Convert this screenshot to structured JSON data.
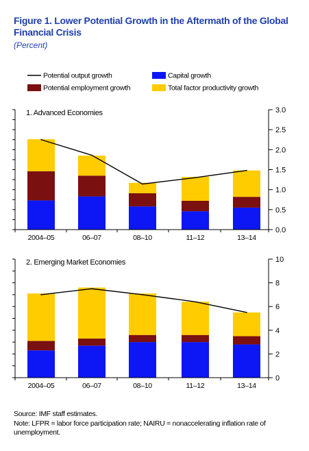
{
  "figure_title": "Figure 1. Lower Potential Growth in the Aftermath of the Global Financial Crisis",
  "subtitle": "(Percent)",
  "legend": {
    "line": "Potential output growth",
    "capital": "Capital growth",
    "employment": "Potential employment growth",
    "tfp": "Total factor productivity growth"
  },
  "colors": {
    "capital": "#0d16f5",
    "employment": "#7a1010",
    "tfp": "#ffcc00",
    "line": "#000000"
  },
  "source": "Source: IMF staff estimates.",
  "note": "Note: LFPR = labor force participation rate; NAIRU = nonaccelerating inflation rate of unemployment.",
  "chart_data": [
    {
      "type": "bar",
      "stacked": true,
      "title": "1. Advanced Economies",
      "categories": [
        "2004–05",
        "06–07",
        "08–10",
        "11–12",
        "13–14"
      ],
      "series": [
        {
          "name": "Capital growth",
          "values": [
            0.73,
            0.83,
            0.58,
            0.46,
            0.55
          ]
        },
        {
          "name": "Potential employment growth",
          "values": [
            0.73,
            0.52,
            0.33,
            0.26,
            0.27
          ]
        },
        {
          "name": "Total factor productivity growth",
          "values": [
            0.8,
            0.5,
            0.26,
            0.6,
            0.66
          ]
        }
      ],
      "line": {
        "name": "Potential output growth",
        "values": [
          2.25,
          1.86,
          1.14,
          1.3,
          1.48
        ]
      },
      "ylim": [
        0,
        3.0
      ],
      "yticks": [
        "0.0",
        "0.5",
        "1.0",
        "1.5",
        "2.0",
        "2.5",
        "3.0"
      ],
      "y_axis_side": "right"
    },
    {
      "type": "bar",
      "stacked": true,
      "title": "2. Emerging Market Economies",
      "categories": [
        "2004–05",
        "06–07",
        "08–10",
        "11–12",
        "13–14"
      ],
      "series": [
        {
          "name": "Capital growth",
          "values": [
            2.3,
            2.7,
            3.0,
            3.0,
            2.8
          ]
        },
        {
          "name": "Potential employment growth",
          "values": [
            0.8,
            0.6,
            0.6,
            0.6,
            0.7
          ]
        },
        {
          "name": "Total factor productivity growth",
          "values": [
            4.0,
            4.3,
            3.5,
            2.8,
            2.0
          ]
        }
      ],
      "line": {
        "name": "Potential output growth",
        "values": [
          7.0,
          7.5,
          7.0,
          6.4,
          5.5
        ]
      },
      "ylim": [
        0,
        10
      ],
      "yticks": [
        "0",
        "2",
        "4",
        "6",
        "8",
        "10"
      ],
      "y_axis_side": "right"
    }
  ]
}
